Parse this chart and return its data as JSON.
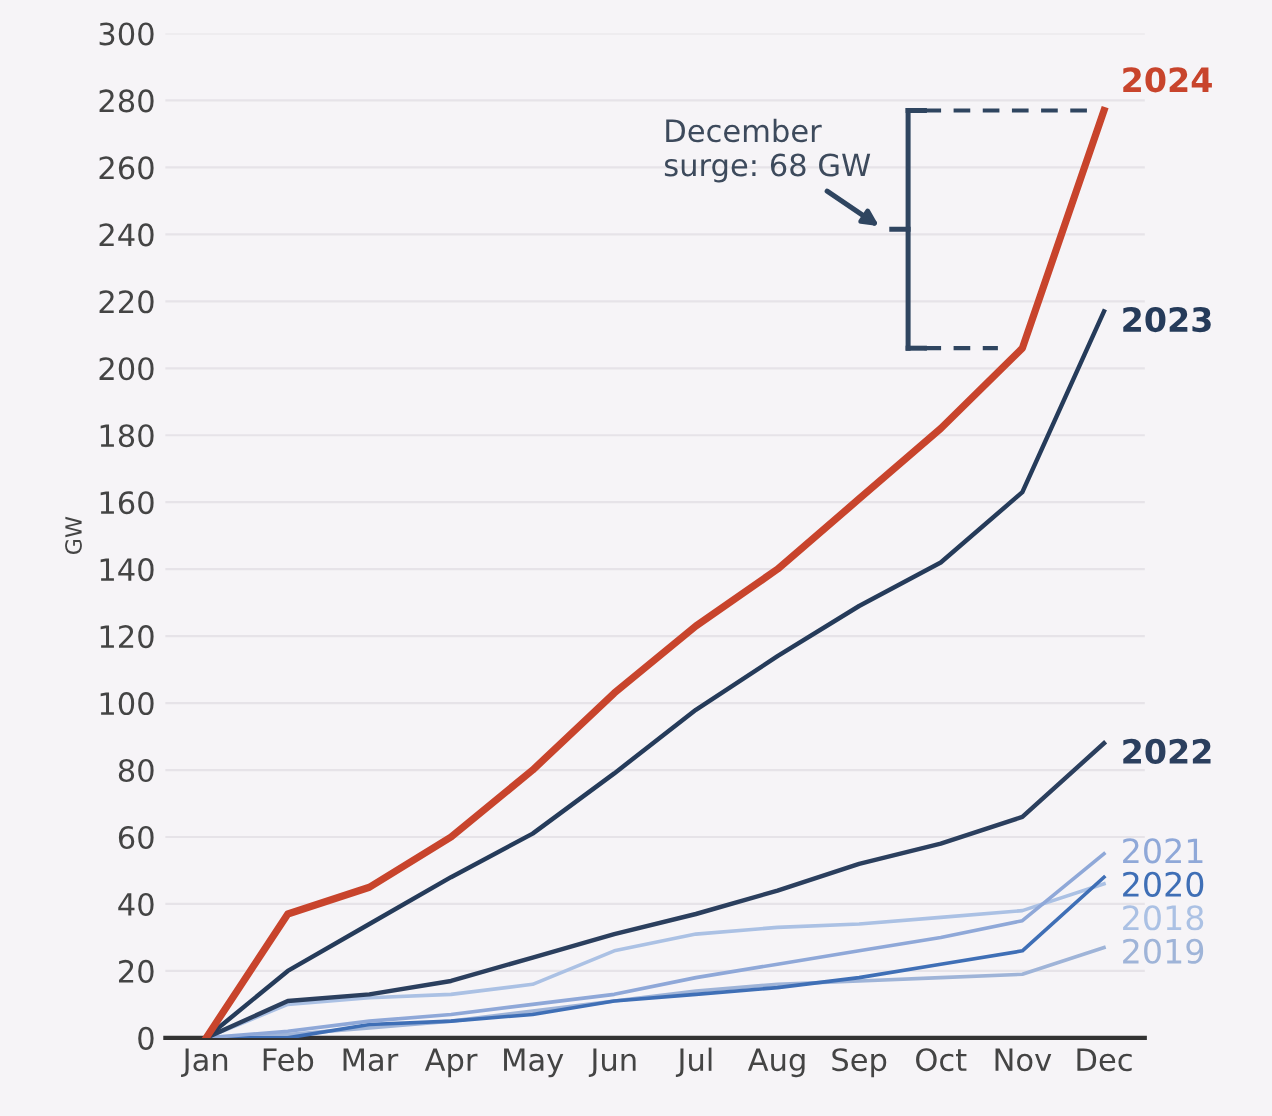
{
  "chart_data": {
    "type": "line",
    "ylabel": "GW",
    "categories": [
      "Jan",
      "Feb",
      "Mar",
      "Apr",
      "May",
      "Jun",
      "Jul",
      "Aug",
      "Sep",
      "Oct",
      "Nov",
      "Dec"
    ],
    "series": [
      {
        "name": "2019",
        "color": "#9fb4d8",
        "values": [
          0,
          1,
          3,
          5,
          8,
          11,
          14,
          16,
          17,
          18,
          19,
          27
        ]
      },
      {
        "name": "2018",
        "color": "#abc1e4",
        "values": [
          0,
          10,
          12,
          13,
          16,
          26,
          31,
          33,
          34,
          36,
          38,
          46
        ]
      },
      {
        "name": "2020",
        "color": "#3f6fb6",
        "values": [
          0,
          0,
          4,
          5,
          7,
          11,
          13,
          15,
          18,
          22,
          26,
          48
        ]
      },
      {
        "name": "2021",
        "color": "#8fa8d8",
        "values": [
          0,
          2,
          5,
          7,
          10,
          13,
          18,
          22,
          26,
          30,
          35,
          55
        ]
      },
      {
        "name": "2022",
        "color": "#2b3f5e",
        "values": [
          0,
          11,
          13,
          17,
          24,
          31,
          37,
          44,
          52,
          58,
          66,
          88
        ]
      },
      {
        "name": "2023",
        "color": "#253b5a",
        "values": [
          0,
          20,
          34,
          48,
          61,
          79,
          98,
          114,
          129,
          142,
          163,
          217
        ]
      },
      {
        "name": "2024",
        "color": "#c8442c",
        "values": [
          0,
          37,
          45,
          60,
          80,
          103,
          123,
          140,
          161,
          182,
          206,
          277
        ]
      }
    ],
    "ylim": [
      0,
      300
    ],
    "yticks": [
      0,
      20,
      40,
      60,
      80,
      100,
      120,
      140,
      160,
      180,
      200,
      220,
      240,
      260,
      280,
      300
    ],
    "grid": "y",
    "legend": false,
    "marker": "none",
    "line_style": "solid",
    "annotations": [
      "December\nsurge: 68 GW"
    ]
  }
}
